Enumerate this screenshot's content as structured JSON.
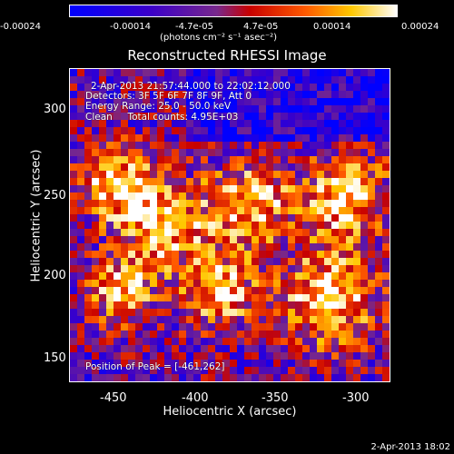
{
  "colorbar": {
    "tick_labels": [
      "-0.00024",
      "-0.00014",
      "-4.7e-05",
      "4.7e-05",
      "0.00014",
      "0.00024"
    ],
    "unit_label": "(photons cm⁻² s⁻¹ asec⁻²)"
  },
  "title": "Reconstructed RHESSI Image",
  "annotations": {
    "time_range": "2-Apr-2013 21:57:44.000 to 22:02:12.000",
    "detectors": "Detectors: 3F 5F 6F 7F 8F 9F, Att 0",
    "energy_range": "Energy Range: 25.0 - 50.0 keV",
    "method_counts": "Clean     Total counts: 4.95E+03",
    "peak_position": "Position of Peak = [-461,262]"
  },
  "axes": {
    "xlabel": "Heliocentric X (arcsec)",
    "ylabel": "Heliocentric Y (arcsec)",
    "xticks": [
      "-450",
      "-400",
      "-350",
      "-300"
    ],
    "yticks": [
      "300",
      "250",
      "200",
      "150"
    ]
  },
  "footer": "2-Apr-2013 18:02"
}
